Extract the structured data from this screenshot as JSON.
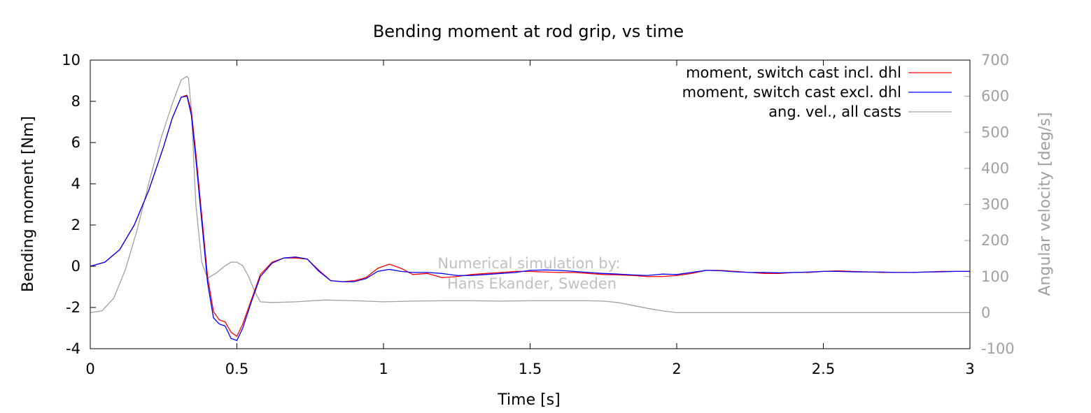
{
  "chart_data": {
    "type": "line",
    "title": "Bending moment at rod grip, vs time",
    "xlabel": "Time [s]",
    "ylabel": "Bending moment [Nm]",
    "y2label": "Angular velocity [deg/s]",
    "xlim": [
      0,
      3
    ],
    "ylim": [
      -4,
      10
    ],
    "y2lim": [
      -100,
      700
    ],
    "xticks": [
      0,
      0.5,
      1,
      1.5,
      2,
      2.5,
      3
    ],
    "xtick_labels": [
      "0",
      "0.5",
      "1",
      "1.5",
      "2",
      "2.5",
      "3"
    ],
    "yticks": [
      -4,
      -2,
      0,
      2,
      4,
      6,
      8,
      10
    ],
    "ytick_labels": [
      "-4",
      "-2",
      "0",
      "2",
      "4",
      "6",
      "8",
      "10"
    ],
    "y2ticks": [
      -100,
      0,
      100,
      200,
      300,
      400,
      500,
      600,
      700
    ],
    "y2tick_labels": [
      "-100",
      "0",
      "100",
      "200",
      "300",
      "400",
      "500",
      "600",
      "700"
    ],
    "grid": false,
    "legend_position": "top-right",
    "annotation": [
      "Numerical simulation by:",
      "Hans Ekander, Sweden"
    ],
    "series": [
      {
        "name": "moment, switch cast incl. dhl",
        "axis": "left",
        "color": "#ff0000",
        "x": [
          0,
          0.05,
          0.1,
          0.15,
          0.2,
          0.25,
          0.28,
          0.31,
          0.33,
          0.345,
          0.36,
          0.38,
          0.4,
          0.42,
          0.44,
          0.46,
          0.48,
          0.5,
          0.52,
          0.55,
          0.58,
          0.62,
          0.66,
          0.7,
          0.74,
          0.78,
          0.82,
          0.86,
          0.9,
          0.94,
          0.98,
          1.02,
          1.06,
          1.1,
          1.15,
          1.2,
          1.25,
          1.3,
          1.35,
          1.4,
          1.45,
          1.5,
          1.55,
          1.6,
          1.65,
          1.7,
          1.75,
          1.8,
          1.85,
          1.9,
          1.95,
          2.0,
          2.05,
          2.1,
          2.15,
          2.2,
          2.25,
          2.3,
          2.35,
          2.4,
          2.45,
          2.5,
          2.55,
          2.6,
          2.65,
          2.7,
          2.75,
          2.8,
          2.85,
          2.9,
          2.95,
          3.0
        ],
        "y": [
          0,
          0.2,
          0.8,
          2.0,
          3.7,
          5.8,
          7.2,
          8.2,
          8.3,
          7.5,
          5.5,
          2.5,
          -0.5,
          -2.2,
          -2.6,
          -2.7,
          -3.2,
          -3.4,
          -2.8,
          -1.6,
          -0.4,
          0.2,
          0.4,
          0.4,
          0.35,
          -0.2,
          -0.7,
          -0.75,
          -0.7,
          -0.55,
          -0.1,
          0.1,
          -0.1,
          -0.4,
          -0.35,
          -0.55,
          -0.5,
          -0.4,
          -0.35,
          -0.3,
          -0.25,
          -0.25,
          -0.28,
          -0.3,
          -0.3,
          -0.35,
          -0.4,
          -0.42,
          -0.45,
          -0.5,
          -0.5,
          -0.45,
          -0.35,
          -0.2,
          -0.2,
          -0.25,
          -0.3,
          -0.35,
          -0.35,
          -0.3,
          -0.3,
          -0.25,
          -0.22,
          -0.25,
          -0.27,
          -0.3,
          -0.3,
          -0.3,
          -0.28,
          -0.25,
          -0.25,
          -0.25
        ]
      },
      {
        "name": "moment, switch cast excl. dhl",
        "axis": "left",
        "color": "#0000ff",
        "x": [
          0,
          0.05,
          0.1,
          0.15,
          0.2,
          0.25,
          0.28,
          0.31,
          0.33,
          0.345,
          0.36,
          0.38,
          0.4,
          0.42,
          0.44,
          0.46,
          0.48,
          0.5,
          0.52,
          0.55,
          0.58,
          0.62,
          0.66,
          0.7,
          0.74,
          0.78,
          0.82,
          0.86,
          0.9,
          0.94,
          0.98,
          1.02,
          1.06,
          1.1,
          1.15,
          1.2,
          1.25,
          1.3,
          1.35,
          1.4,
          1.45,
          1.5,
          1.55,
          1.6,
          1.65,
          1.7,
          1.75,
          1.8,
          1.85,
          1.9,
          1.95,
          2.0,
          2.05,
          2.1,
          2.15,
          2.2,
          2.25,
          2.3,
          2.35,
          2.4,
          2.45,
          2.5,
          2.55,
          2.6,
          2.65,
          2.7,
          2.75,
          2.8,
          2.85,
          2.9,
          2.95,
          3.0
        ],
        "y": [
          0,
          0.2,
          0.8,
          2.0,
          3.7,
          5.8,
          7.2,
          8.2,
          8.25,
          7.3,
          5.2,
          2.2,
          -0.8,
          -2.5,
          -2.8,
          -2.9,
          -3.5,
          -3.6,
          -3.0,
          -1.7,
          -0.5,
          0.15,
          0.4,
          0.45,
          0.35,
          -0.25,
          -0.7,
          -0.75,
          -0.75,
          -0.6,
          -0.25,
          -0.15,
          -0.25,
          -0.3,
          -0.3,
          -0.35,
          -0.45,
          -0.45,
          -0.4,
          -0.35,
          -0.3,
          -0.2,
          -0.18,
          -0.2,
          -0.25,
          -0.3,
          -0.35,
          -0.38,
          -0.42,
          -0.45,
          -0.38,
          -0.4,
          -0.3,
          -0.2,
          -0.22,
          -0.27,
          -0.3,
          -0.3,
          -0.32,
          -0.3,
          -0.28,
          -0.25,
          -0.25,
          -0.27,
          -0.28,
          -0.28,
          -0.3,
          -0.3,
          -0.28,
          -0.27,
          -0.25,
          -0.25
        ]
      },
      {
        "name": "ang. vel., all casts",
        "axis": "right",
        "color": "#a0a0a0",
        "x": [
          0,
          0.04,
          0.08,
          0.12,
          0.16,
          0.2,
          0.24,
          0.28,
          0.31,
          0.33,
          0.335,
          0.345,
          0.36,
          0.38,
          0.4,
          0.43,
          0.46,
          0.48,
          0.5,
          0.52,
          0.54,
          0.56,
          0.58,
          0.62,
          0.7,
          0.8,
          0.9,
          1.0,
          1.1,
          1.2,
          1.3,
          1.4,
          1.5,
          1.6,
          1.7,
          1.75,
          1.8,
          1.85,
          1.9,
          1.95,
          2.0,
          2.1,
          2.2,
          2.3,
          2.4,
          2.5,
          2.6,
          2.7,
          2.8,
          2.9,
          3.0
        ],
        "y": [
          0,
          5,
          40,
          120,
          230,
          360,
          480,
          580,
          645,
          655,
          650,
          560,
          300,
          140,
          95,
          110,
          130,
          140,
          140,
          130,
          100,
          60,
          30,
          28,
          30,
          35,
          33,
          30,
          32,
          33,
          33,
          32,
          33,
          33,
          33,
          32,
          28,
          20,
          12,
          5,
          0,
          0,
          0,
          0,
          0,
          0,
          0,
          0,
          0,
          0,
          0
        ]
      }
    ]
  }
}
